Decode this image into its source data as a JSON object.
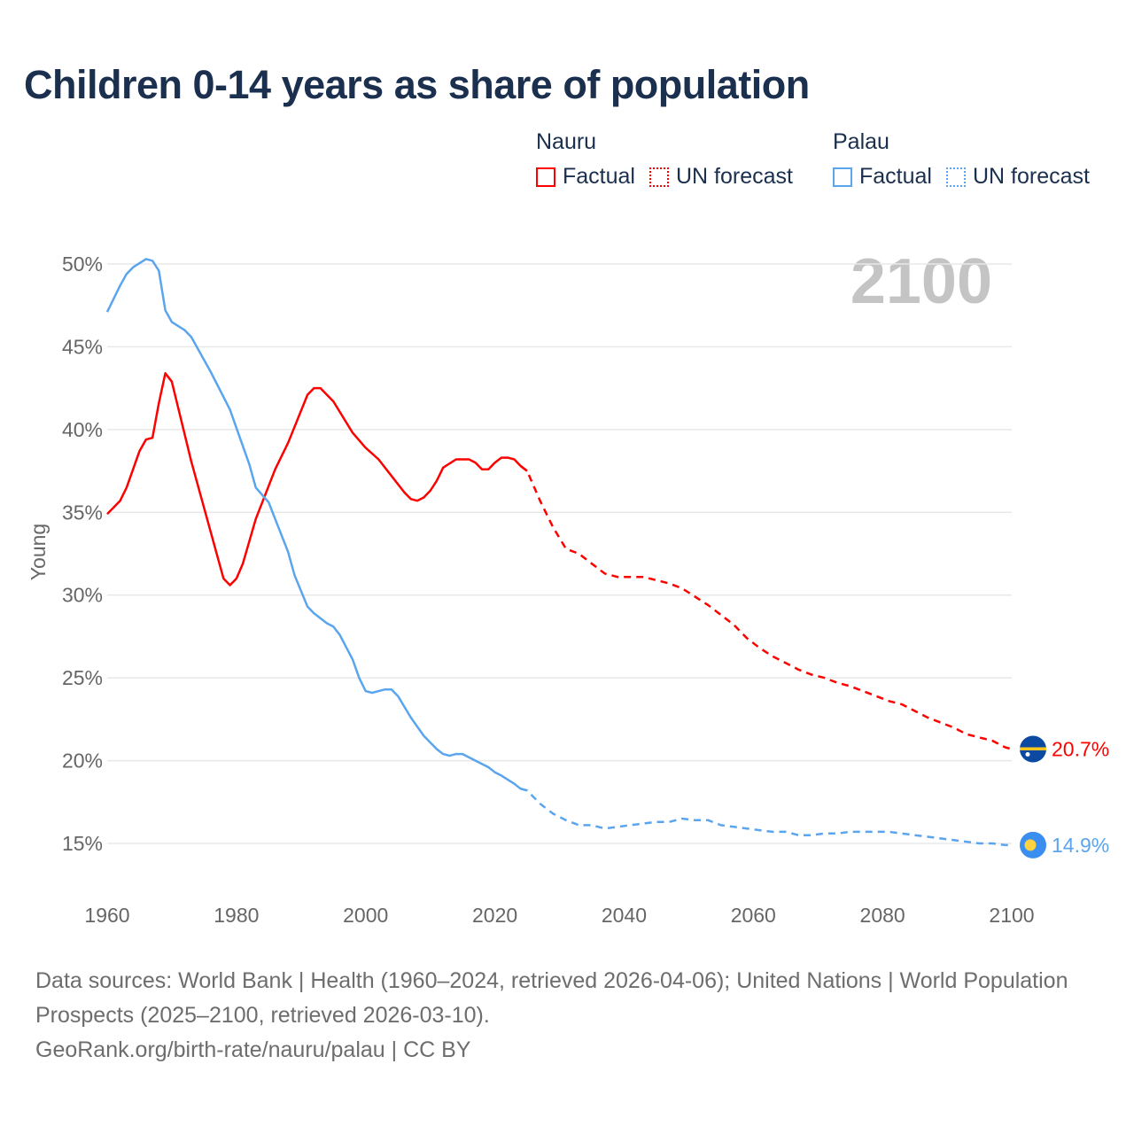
{
  "chart_data": {
    "type": "line",
    "title": "Children 0-14 years as share of population",
    "ylabel": "Young",
    "xlabel": "",
    "xlim": [
      1960,
      2100
    ],
    "ylim": [
      12.5,
      51
    ],
    "x_ticks": [
      1960,
      1980,
      2000,
      2020,
      2040,
      2060,
      2080,
      2100
    ],
    "x_tick_labels": [
      "1960",
      "1980",
      "2000",
      "2020",
      "2040",
      "2060",
      "2080",
      "2100"
    ],
    "y_ticks": [
      15,
      20,
      25,
      30,
      35,
      40,
      45,
      50
    ],
    "y_tick_labels": [
      "15%",
      "20%",
      "25%",
      "30%",
      "35%",
      "40%",
      "45%",
      "50%"
    ],
    "grid": true,
    "year_watermark": "2100",
    "forecast_from": 2024,
    "legend": {
      "placement": "top-right",
      "groups": [
        {
          "name": "Nauru",
          "items": [
            "Factual",
            "UN forecast"
          ],
          "color": "#ff0000"
        },
        {
          "name": "Palau",
          "items": [
            "Factual",
            "UN forecast"
          ],
          "color": "#5aa5ee"
        }
      ]
    },
    "series": [
      {
        "name": "Nauru",
        "color": "#ff0000",
        "end_label": "20.7%",
        "flag": "nauru",
        "x": [
          1960,
          1962,
          1963,
          1965,
          1966,
          1967,
          1968,
          1969,
          1970,
          1973,
          1978,
          1979,
          1980,
          1981,
          1983,
          1985,
          1986,
          1988,
          1991,
          1992,
          1993,
          1995,
          1998,
          2000,
          2002,
          2004,
          2006,
          2007,
          2008,
          2009,
          2010,
          2011,
          2012,
          2014,
          2016,
          2017,
          2018,
          2019,
          2020,
          2021,
          2022,
          2023,
          2024,
          2025,
          2027,
          2029,
          2031,
          2033,
          2035,
          2037,
          2039,
          2041,
          2043,
          2045,
          2047,
          2049,
          2051,
          2053,
          2055,
          2057,
          2059,
          2061,
          2063,
          2065,
          2067,
          2069,
          2071,
          2073,
          2075,
          2077,
          2079,
          2081,
          2083,
          2085,
          2087,
          2089,
          2091,
          2093,
          2095,
          2097,
          2099,
          2100
        ],
        "y": [
          34.9,
          35.7,
          36.5,
          38.7,
          39.4,
          39.5,
          41.6,
          43.4,
          42.9,
          38.1,
          31.0,
          30.6,
          31.0,
          31.9,
          34.6,
          36.6,
          37.6,
          39.2,
          42.1,
          42.5,
          42.5,
          41.7,
          39.8,
          38.9,
          38.2,
          37.2,
          36.2,
          35.8,
          35.7,
          35.9,
          36.3,
          36.9,
          37.7,
          38.2,
          38.2,
          38.0,
          37.6,
          37.6,
          38.0,
          38.3,
          38.3,
          38.2,
          37.8,
          37.5,
          35.7,
          34.1,
          32.8,
          32.5,
          31.9,
          31.3,
          31.1,
          31.1,
          31.1,
          30.9,
          30.7,
          30.4,
          29.9,
          29.4,
          28.8,
          28.2,
          27.4,
          26.8,
          26.3,
          25.9,
          25.5,
          25.2,
          25.0,
          24.7,
          24.5,
          24.2,
          23.9,
          23.6,
          23.4,
          23.0,
          22.6,
          22.3,
          22.0,
          21.6,
          21.4,
          21.2,
          20.8,
          20.7
        ]
      },
      {
        "name": "Palau",
        "color": "#5aa5ee",
        "end_label": "14.9%",
        "flag": "palau",
        "x": [
          1960,
          1961,
          1962,
          1963,
          1964,
          1966,
          1967,
          1968,
          1969,
          1970,
          1972,
          1973,
          1976,
          1979,
          1982,
          1983,
          1985,
          1986,
          1988,
          1989,
          1991,
          1992,
          1993,
          1994,
          1995,
          1996,
          1998,
          1999,
          2000,
          2001,
          2002,
          2003,
          2004,
          2005,
          2007,
          2009,
          2011,
          2012,
          2013,
          2014,
          2015,
          2017,
          2019,
          2020,
          2021,
          2023,
          2024,
          2025,
          2027,
          2029,
          2031,
          2033,
          2035,
          2037,
          2039,
          2041,
          2043,
          2045,
          2047,
          2049,
          2051,
          2053,
          2055,
          2057,
          2059,
          2061,
          2063,
          2065,
          2067,
          2069,
          2071,
          2073,
          2075,
          2077,
          2079,
          2081,
          2083,
          2085,
          2087,
          2089,
          2091,
          2093,
          2095,
          2097,
          2099,
          2100
        ],
        "y": [
          47.1,
          47.9,
          48.7,
          49.4,
          49.8,
          50.3,
          50.2,
          49.6,
          47.2,
          46.5,
          46.0,
          45.6,
          43.5,
          41.2,
          37.9,
          36.5,
          35.6,
          34.6,
          32.6,
          31.2,
          29.3,
          28.9,
          28.6,
          28.3,
          28.1,
          27.6,
          26.1,
          25.0,
          24.2,
          24.1,
          24.2,
          24.3,
          24.3,
          23.9,
          22.6,
          21.5,
          20.7,
          20.4,
          20.3,
          20.4,
          20.4,
          20.0,
          19.6,
          19.3,
          19.1,
          18.6,
          18.3,
          18.2,
          17.4,
          16.8,
          16.4,
          16.1,
          16.1,
          15.9,
          16.0,
          16.1,
          16.2,
          16.3,
          16.3,
          16.5,
          16.4,
          16.4,
          16.1,
          16.0,
          15.9,
          15.8,
          15.7,
          15.7,
          15.5,
          15.5,
          15.6,
          15.6,
          15.7,
          15.7,
          15.7,
          15.7,
          15.6,
          15.5,
          15.4,
          15.3,
          15.2,
          15.1,
          15.0,
          15.0,
          14.9,
          14.9
        ]
      }
    ]
  },
  "footer": {
    "sources": "Data sources: World Bank | Health (1960–2024, retrieved 2026-04-06); United Nations | World Population Prospects (2025–2100, retrieved 2026-03-10).",
    "credit": "GeoRank.org/birth-rate/nauru/palau | CC BY"
  }
}
